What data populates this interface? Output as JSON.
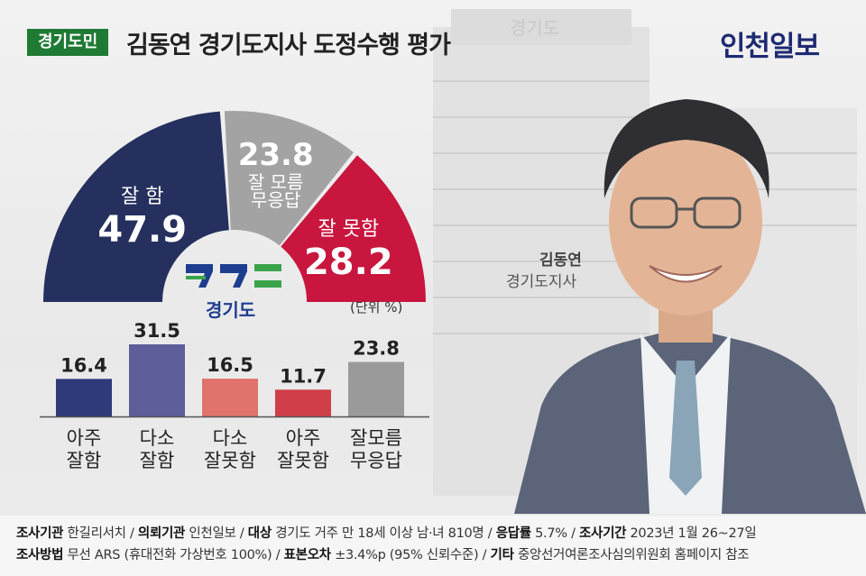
{
  "header": {
    "badge": "경기도민",
    "title": "김동연 경기도지사 도정수행 평가",
    "publisher": "인천일보"
  },
  "background": {
    "sign_text": "경기도"
  },
  "logo": {
    "text": "경기도"
  },
  "person": {
    "name": "김동연",
    "title": "경기도지사"
  },
  "colors": {
    "navy": "#25305e",
    "gray": "#a3a3a3",
    "red": "#c8163e",
    "badge_green": "#1f7a34"
  },
  "chart_data": [
    {
      "type": "pie",
      "style": "half-donut",
      "labels": [
        "잘 함",
        "잘 모름\n무응답",
        "잘 못함"
      ],
      "values": [
        47.9,
        23.8,
        28.2
      ],
      "value_text": [
        "47.9",
        "23.8",
        "28.2"
      ],
      "colors": [
        "#25305e",
        "#a3a3a3",
        "#c8163e"
      ]
    },
    {
      "type": "bar",
      "unit": "(단위 %)",
      "categories": [
        "아주\n잘함",
        "다소\n잘함",
        "다소\n잘못함",
        "아주\n잘못함",
        "잘모름\n무응답"
      ],
      "values": [
        16.4,
        31.5,
        16.5,
        11.7,
        23.8
      ],
      "value_text": [
        "16.4",
        "31.5",
        "16.5",
        "11.7",
        "23.8"
      ],
      "colors": [
        "#2f3a7a",
        "#5d5d9a",
        "#e0736b",
        "#cf3e49",
        "#9a9a9a"
      ],
      "ylim": [
        0,
        31.5
      ]
    }
  ],
  "footer": {
    "k1": "조사기관",
    "v1": "한길리서치",
    "k2": "의뢰기관",
    "v2": "인천일보",
    "k3": "대상",
    "v3": "경기도 거주 만 18세 이상 남·녀 810명",
    "k4": "응답률",
    "v4": "5.7%",
    "k5": "조사기간",
    "v5": "2023년 1월 26~27일",
    "k6": "조사방법",
    "v6": "무선 ARS (휴대전화 가상번호 100%)",
    "k7": "표본오차",
    "v7": "±3.4%p (95% 신뢰수준)",
    "k8": "기타",
    "v8": "중앙선거여론조사심의위원회 홈페이지 참조"
  }
}
